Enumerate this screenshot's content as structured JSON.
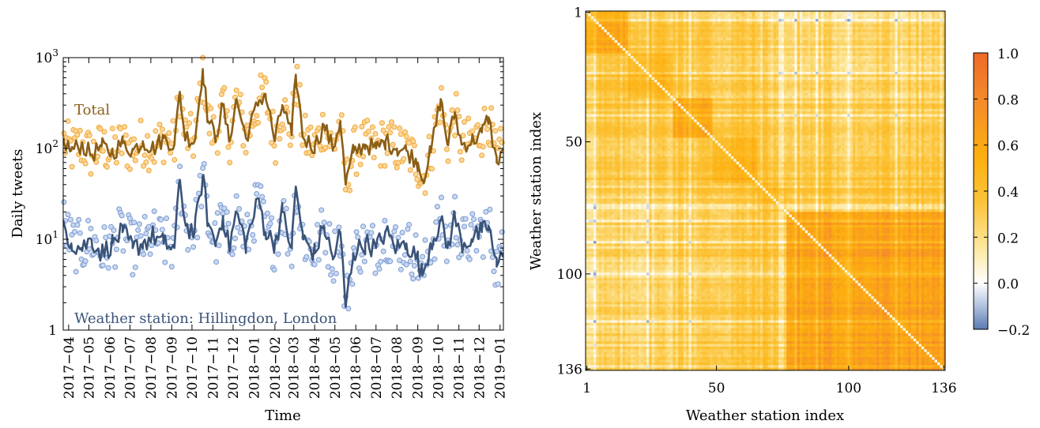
{
  "colors": {
    "total_line": "#8B5E16",
    "total_marker_fill": "#FBD79A",
    "total_marker_edge": "#F0A838",
    "station_line": "#3A5378",
    "station_marker_fill": "#C8D8F2",
    "station_marker_edge": "#7C9AD0",
    "heatmap_stops": [
      "#5B7BB2",
      "#AFC0DE",
      "#FFFFFF",
      "#FCE8A0",
      "#FCC43A",
      "#FDB00F",
      "#F48A2A",
      "#EE6A28"
    ]
  },
  "chart_data": [
    {
      "type": "line",
      "xlabel": "Time",
      "ylabel": "Daily tweets",
      "yscale": "log",
      "ylim": [
        1,
        1000
      ],
      "xlim": [
        "2017-03-24",
        "2019-01-06"
      ],
      "y_ticks": [
        {
          "base": "1",
          "exp": ""
        },
        {
          "base": "10",
          "exp": "1"
        },
        {
          "base": "10",
          "exp": "2"
        },
        {
          "base": "10",
          "exp": "3"
        }
      ],
      "x_tick_labels": [
        "2017−04",
        "2017−05",
        "2017−06",
        "2017−07",
        "2017−08",
        "2017−09",
        "2017−10",
        "2017−11",
        "2017−12",
        "2018−01",
        "2018−02",
        "2018−03",
        "2018−04",
        "2018−05",
        "2018−06",
        "2018−07",
        "2018−08",
        "2018−09",
        "2018−10",
        "2018−11",
        "2018−12",
        "2019−01"
      ],
      "grid": false,
      "series": [
        {
          "name": "Total",
          "marker": "circle",
          "points": [
            [
              "2017-03-25",
              120
            ],
            [
              "2017-04-05",
              95
            ],
            [
              "2017-04-20",
              110
            ],
            [
              "2017-05-05",
              85
            ],
            [
              "2017-05-20",
              105
            ],
            [
              "2017-06-05",
              90
            ],
            [
              "2017-06-20",
              115
            ],
            [
              "2017-07-05",
              95
            ],
            [
              "2017-07-20",
              120
            ],
            [
              "2017-08-05",
              100
            ],
            [
              "2017-08-20",
              130
            ],
            [
              "2017-09-05",
              110
            ],
            [
              "2017-09-13",
              420
            ],
            [
              "2017-09-20",
              140
            ],
            [
              "2017-10-05",
              120
            ],
            [
              "2017-10-17",
              750
            ],
            [
              "2017-10-25",
              200
            ],
            [
              "2017-11-05",
              135
            ],
            [
              "2017-11-16",
              300
            ],
            [
              "2017-11-25",
              120
            ],
            [
              "2017-12-06",
              350
            ],
            [
              "2017-12-20",
              130
            ],
            [
              "2018-01-08",
              330
            ],
            [
              "2018-01-18",
              400
            ],
            [
              "2018-02-01",
              120
            ],
            [
              "2018-02-12",
              300
            ],
            [
              "2018-02-26",
              140
            ],
            [
              "2018-03-04",
              650
            ],
            [
              "2018-03-15",
              130
            ],
            [
              "2018-04-01",
              105
            ],
            [
              "2018-04-15",
              180
            ],
            [
              "2018-04-28",
              100
            ],
            [
              "2018-05-09",
              200
            ],
            [
              "2018-05-17",
              40
            ],
            [
              "2018-05-28",
              90
            ],
            [
              "2018-06-15",
              110
            ],
            [
              "2018-07-01",
              100
            ],
            [
              "2018-07-15",
              120
            ],
            [
              "2018-08-01",
              100
            ],
            [
              "2018-08-15",
              95
            ],
            [
              "2018-09-01",
              70
            ],
            [
              "2018-09-08",
              45
            ],
            [
              "2018-09-20",
              90
            ],
            [
              "2018-10-05",
              350
            ],
            [
              "2018-10-15",
              110
            ],
            [
              "2018-10-26",
              250
            ],
            [
              "2018-11-05",
              110
            ],
            [
              "2018-11-20",
              120
            ],
            [
              "2018-12-05",
              150
            ],
            [
              "2018-12-15",
              220
            ],
            [
              "2018-12-27",
              70
            ],
            [
              "2019-01-05",
              100
            ]
          ]
        },
        {
          "name": "Weather station: Hillingdon, London",
          "marker": "circle",
          "points": [
            [
              "2017-03-25",
              15
            ],
            [
              "2017-04-05",
              9
            ],
            [
              "2017-04-20",
              8
            ],
            [
              "2017-05-05",
              10
            ],
            [
              "2017-05-20",
              7
            ],
            [
              "2017-06-05",
              9
            ],
            [
              "2017-06-20",
              12
            ],
            [
              "2017-07-05",
              8
            ],
            [
              "2017-07-20",
              9
            ],
            [
              "2017-08-05",
              11
            ],
            [
              "2017-08-20",
              9
            ],
            [
              "2017-09-05",
              8
            ],
            [
              "2017-09-13",
              45
            ],
            [
              "2017-09-22",
              14
            ],
            [
              "2017-10-05",
              12
            ],
            [
              "2017-10-17",
              50
            ],
            [
              "2017-10-25",
              15
            ],
            [
              "2017-11-05",
              9
            ],
            [
              "2017-11-16",
              18
            ],
            [
              "2017-11-25",
              8
            ],
            [
              "2017-12-06",
              20
            ],
            [
              "2017-12-20",
              9
            ],
            [
              "2018-01-08",
              28
            ],
            [
              "2018-01-18",
              12
            ],
            [
              "2018-02-01",
              9
            ],
            [
              "2018-02-12",
              20
            ],
            [
              "2018-02-26",
              8
            ],
            [
              "2018-03-04",
              38
            ],
            [
              "2018-03-15",
              10
            ],
            [
              "2018-04-01",
              7
            ],
            [
              "2018-04-15",
              14
            ],
            [
              "2018-04-28",
              6
            ],
            [
              "2018-05-09",
              12
            ],
            [
              "2018-05-17",
              1.8
            ],
            [
              "2018-05-28",
              7
            ],
            [
              "2018-06-15",
              9
            ],
            [
              "2018-07-01",
              8
            ],
            [
              "2018-07-15",
              12
            ],
            [
              "2018-08-01",
              8
            ],
            [
              "2018-08-15",
              9
            ],
            [
              "2018-09-01",
              6
            ],
            [
              "2018-09-08",
              4
            ],
            [
              "2018-09-20",
              9
            ],
            [
              "2018-10-05",
              16
            ],
            [
              "2018-10-15",
              8
            ],
            [
              "2018-10-26",
              18
            ],
            [
              "2018-11-05",
              9
            ],
            [
              "2018-11-20",
              10
            ],
            [
              "2018-12-05",
              12
            ],
            [
              "2018-12-15",
              14
            ],
            [
              "2018-12-27",
              5
            ],
            [
              "2019-01-05",
              7
            ]
          ]
        }
      ]
    },
    {
      "type": "heatmap",
      "xlabel": "Weather station index",
      "ylabel": "Weather station index",
      "size": 136,
      "x_tick_labels": [
        "1",
        "50",
        "100",
        "136"
      ],
      "y_tick_labels": [
        "1",
        "50",
        "100",
        "136"
      ],
      "tick_values": [
        1,
        50,
        100,
        136
      ],
      "colorbar": {
        "vmin": -0.2,
        "vmax": 1.0,
        "tick_values": [
          -0.2,
          0.0,
          0.2,
          0.4,
          0.6,
          0.8,
          1.0
        ],
        "tick_labels": [
          "−0.2",
          "0.0",
          "0.2",
          "0.4",
          "0.6",
          "0.8",
          "1.0"
        ]
      },
      "blocks": [
        {
          "from": 1,
          "to": 16,
          "value": 0.55
        },
        {
          "from": 17,
          "to": 33,
          "value": 0.5
        },
        {
          "from": 34,
          "to": 48,
          "value": 0.58
        },
        {
          "from": 49,
          "to": 65,
          "value": 0.5
        },
        {
          "from": 66,
          "to": 76,
          "value": 0.45
        },
        {
          "from": 77,
          "to": 136,
          "value": 0.62
        }
      ]
    }
  ]
}
